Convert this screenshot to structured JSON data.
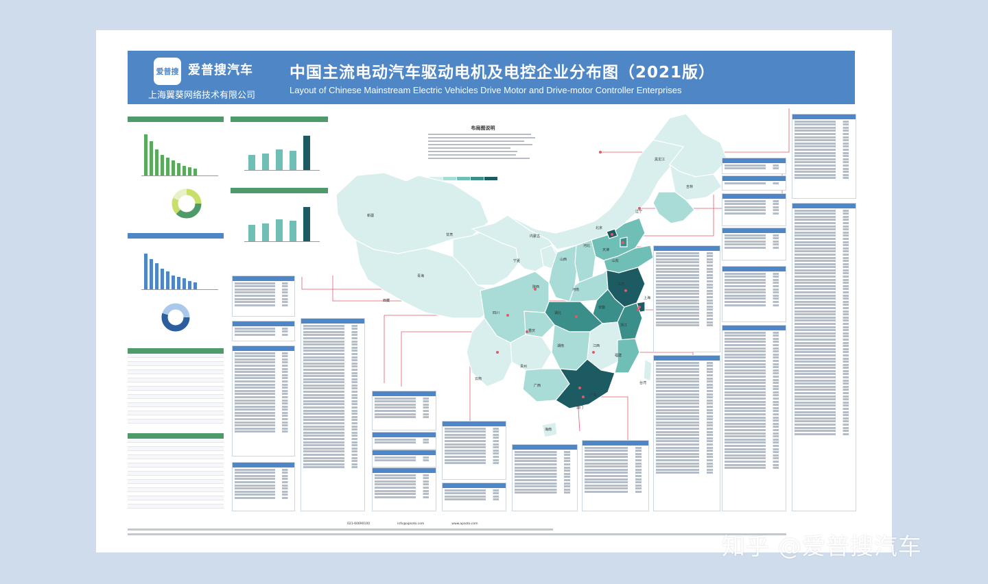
{
  "header": {
    "logo_text": "爱普搜",
    "brand_name": "爱普搜汽车",
    "company": "上海翼葵网络技术有限公司",
    "title_cn": "中国主流电动汽车驱动电机及电控企业分布图（2021版）",
    "title_en": "Layout of Chinese Mainstream Electric Vehicles  Drive Motor and Drive-motor Controller Enterprises"
  },
  "legend": {
    "title": "布局图说明"
  },
  "map": {
    "provinces": [
      "新疆",
      "西藏",
      "青海",
      "甘肃",
      "内蒙古",
      "宁夏",
      "山西",
      "陕西",
      "四川",
      "重庆",
      "云南",
      "贵州",
      "广西",
      "湖南",
      "湖北",
      "河南",
      "河北",
      "北京",
      "天津",
      "山东",
      "江苏",
      "上海",
      "浙江",
      "安徽",
      "江西",
      "福建",
      "广东",
      "海南",
      "台湾",
      "辽宁",
      "吉林",
      "黑龙江",
      "澳门"
    ],
    "colors": {
      "level1": "#d8efed",
      "level2": "#a9dcd6",
      "level3": "#6fbfb6",
      "level4": "#3a8f8a",
      "level5": "#1d5b63",
      "border": "#ffffff",
      "leader": "#e05a6a"
    }
  },
  "footer": {
    "hotline": "021-60690100",
    "email": "info@apsoto.com",
    "website": "www.apsoto.com"
  },
  "watermark": "知乎 @爱普搜汽车"
}
